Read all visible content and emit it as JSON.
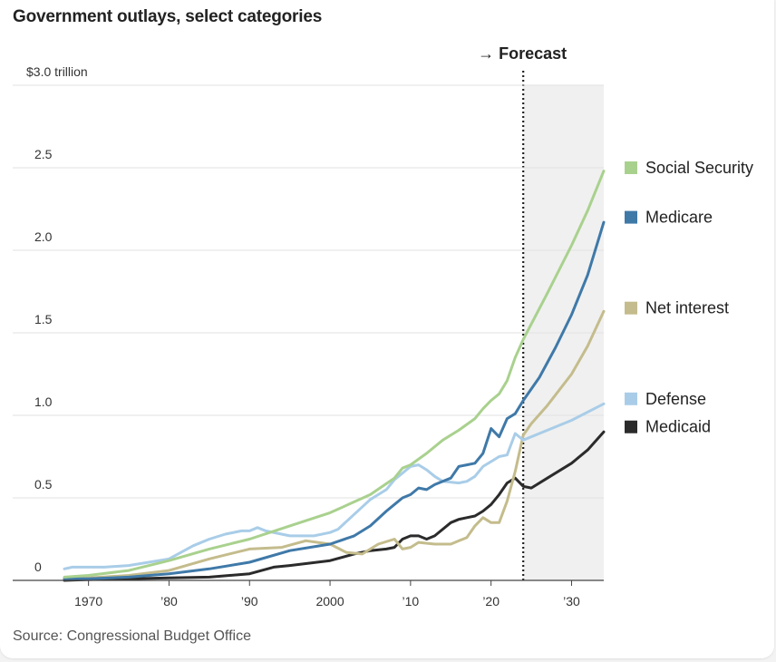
{
  "chart_data": {
    "type": "line",
    "title": "Government outlays, select categories",
    "source": "Source: Congressional Budget Office",
    "forecast_label": "→ Forecast",
    "forecast_start": 2024,
    "xlim": [
      1967,
      2034
    ],
    "ylim": [
      0,
      3.0
    ],
    "y_ticks": [
      {
        "value": 0,
        "label": "0"
      },
      {
        "value": 0.5,
        "label": "0.5"
      },
      {
        "value": 1.0,
        "label": "1.0"
      },
      {
        "value": 1.5,
        "label": "1.5"
      },
      {
        "value": 2.0,
        "label": "2.0"
      },
      {
        "value": 2.5,
        "label": "2.5"
      },
      {
        "value": 3.0,
        "label": "$3.0 trillion"
      }
    ],
    "x_ticks": [
      {
        "value": 1970,
        "label": "1970"
      },
      {
        "value": 1980,
        "label": "’80"
      },
      {
        "value": 1990,
        "label": "’90"
      },
      {
        "value": 2000,
        "label": "2000"
      },
      {
        "value": 2010,
        "label": "’10"
      },
      {
        "value": 2020,
        "label": "’20"
      },
      {
        "value": 2030,
        "label": "’30"
      }
    ],
    "grid": true,
    "legend_position": "right",
    "series": [
      {
        "name": "Social Security",
        "color": "#a9d18e",
        "points": [
          [
            1967,
            0.02
          ],
          [
            1970,
            0.03
          ],
          [
            1975,
            0.06
          ],
          [
            1980,
            0.12
          ],
          [
            1985,
            0.19
          ],
          [
            1990,
            0.25
          ],
          [
            1995,
            0.33
          ],
          [
            2000,
            0.41
          ],
          [
            2005,
            0.52
          ],
          [
            2008,
            0.62
          ],
          [
            2009,
            0.68
          ],
          [
            2010,
            0.7
          ],
          [
            2012,
            0.77
          ],
          [
            2014,
            0.85
          ],
          [
            2016,
            0.91
          ],
          [
            2018,
            0.98
          ],
          [
            2019,
            1.04
          ],
          [
            2020,
            1.09
          ],
          [
            2021,
            1.13
          ],
          [
            2022,
            1.21
          ],
          [
            2023,
            1.35
          ],
          [
            2024,
            1.46
          ],
          [
            2027,
            1.74
          ],
          [
            2030,
            2.03
          ],
          [
            2032,
            2.24
          ],
          [
            2034,
            2.48
          ]
        ]
      },
      {
        "name": "Medicare",
        "color": "#3f79a8",
        "points": [
          [
            1967,
            0.01
          ],
          [
            1970,
            0.01
          ],
          [
            1975,
            0.02
          ],
          [
            1980,
            0.04
          ],
          [
            1985,
            0.07
          ],
          [
            1990,
            0.11
          ],
          [
            1995,
            0.18
          ],
          [
            2000,
            0.22
          ],
          [
            2003,
            0.27
          ],
          [
            2005,
            0.33
          ],
          [
            2007,
            0.42
          ],
          [
            2008,
            0.46
          ],
          [
            2009,
            0.5
          ],
          [
            2010,
            0.52
          ],
          [
            2011,
            0.56
          ],
          [
            2012,
            0.55
          ],
          [
            2013,
            0.58
          ],
          [
            2015,
            0.62
          ],
          [
            2016,
            0.69
          ],
          [
            2017,
            0.7
          ],
          [
            2018,
            0.71
          ],
          [
            2019,
            0.77
          ],
          [
            2020,
            0.92
          ],
          [
            2021,
            0.87
          ],
          [
            2022,
            0.98
          ],
          [
            2023,
            1.01
          ],
          [
            2024,
            1.09
          ],
          [
            2026,
            1.23
          ],
          [
            2028,
            1.41
          ],
          [
            2030,
            1.61
          ],
          [
            2032,
            1.85
          ],
          [
            2034,
            2.17
          ]
        ]
      },
      {
        "name": "Net interest",
        "color": "#c4bc8c",
        "points": [
          [
            1967,
            0.01
          ],
          [
            1970,
            0.015
          ],
          [
            1975,
            0.03
          ],
          [
            1980,
            0.06
          ],
          [
            1985,
            0.13
          ],
          [
            1990,
            0.19
          ],
          [
            1994,
            0.2
          ],
          [
            1997,
            0.24
          ],
          [
            2000,
            0.22
          ],
          [
            2002,
            0.17
          ],
          [
            2004,
            0.16
          ],
          [
            2006,
            0.22
          ],
          [
            2008,
            0.25
          ],
          [
            2009,
            0.19
          ],
          [
            2010,
            0.2
          ],
          [
            2011,
            0.23
          ],
          [
            2013,
            0.22
          ],
          [
            2015,
            0.22
          ],
          [
            2017,
            0.26
          ],
          [
            2018,
            0.33
          ],
          [
            2019,
            0.38
          ],
          [
            2020,
            0.35
          ],
          [
            2021,
            0.35
          ],
          [
            2022,
            0.48
          ],
          [
            2023,
            0.66
          ],
          [
            2024,
            0.88
          ],
          [
            2025,
            0.95
          ],
          [
            2027,
            1.06
          ],
          [
            2030,
            1.25
          ],
          [
            2032,
            1.42
          ],
          [
            2034,
            1.63
          ]
        ]
      },
      {
        "name": "Defense",
        "color": "#a9cde8",
        "points": [
          [
            1967,
            0.07
          ],
          [
            1968,
            0.08
          ],
          [
            1972,
            0.08
          ],
          [
            1975,
            0.09
          ],
          [
            1980,
            0.13
          ],
          [
            1983,
            0.21
          ],
          [
            1985,
            0.25
          ],
          [
            1987,
            0.28
          ],
          [
            1989,
            0.3
          ],
          [
            1990,
            0.3
          ],
          [
            1991,
            0.32
          ],
          [
            1992,
            0.3
          ],
          [
            1995,
            0.27
          ],
          [
            1998,
            0.27
          ],
          [
            2000,
            0.29
          ],
          [
            2001,
            0.31
          ],
          [
            2003,
            0.4
          ],
          [
            2005,
            0.49
          ],
          [
            2007,
            0.55
          ],
          [
            2008,
            0.61
          ],
          [
            2009,
            0.65
          ],
          [
            2010,
            0.69
          ],
          [
            2011,
            0.7
          ],
          [
            2012,
            0.67
          ],
          [
            2013,
            0.63
          ],
          [
            2014,
            0.6
          ],
          [
            2016,
            0.59
          ],
          [
            2017,
            0.6
          ],
          [
            2018,
            0.63
          ],
          [
            2019,
            0.69
          ],
          [
            2020,
            0.72
          ],
          [
            2021,
            0.75
          ],
          [
            2022,
            0.76
          ],
          [
            2023,
            0.89
          ],
          [
            2024,
            0.85
          ],
          [
            2026,
            0.89
          ],
          [
            2030,
            0.97
          ],
          [
            2034,
            1.07
          ]
        ]
      },
      {
        "name": "Medicaid",
        "color": "#2b2b2b",
        "points": [
          [
            1967,
            0.0
          ],
          [
            1970,
            0.005
          ],
          [
            1975,
            0.01
          ],
          [
            1980,
            0.015
          ],
          [
            1985,
            0.02
          ],
          [
            1990,
            0.04
          ],
          [
            1993,
            0.08
          ],
          [
            1995,
            0.09
          ],
          [
            2000,
            0.12
          ],
          [
            2003,
            0.16
          ],
          [
            2005,
            0.18
          ],
          [
            2007,
            0.19
          ],
          [
            2008,
            0.2
          ],
          [
            2009,
            0.25
          ],
          [
            2010,
            0.27
          ],
          [
            2011,
            0.27
          ],
          [
            2012,
            0.25
          ],
          [
            2013,
            0.27
          ],
          [
            2015,
            0.35
          ],
          [
            2016,
            0.37
          ],
          [
            2017,
            0.38
          ],
          [
            2018,
            0.39
          ],
          [
            2019,
            0.42
          ],
          [
            2020,
            0.46
          ],
          [
            2021,
            0.52
          ],
          [
            2022,
            0.59
          ],
          [
            2023,
            0.62
          ],
          [
            2024,
            0.57
          ],
          [
            2025,
            0.56
          ],
          [
            2027,
            0.62
          ],
          [
            2030,
            0.71
          ],
          [
            2032,
            0.79
          ],
          [
            2034,
            0.9
          ]
        ]
      }
    ],
    "legend": [
      {
        "name": "Social Security",
        "color": "#a9d18e",
        "value": 2.5
      },
      {
        "name": "Medicare",
        "color": "#3f79a8",
        "value": 2.2
      },
      {
        "name": "Net interest",
        "color": "#c4bc8c",
        "value": 1.65
      },
      {
        "name": "Defense",
        "color": "#a9cde8",
        "value": 1.1
      },
      {
        "name": "Medicaid",
        "color": "#2b2b2b",
        "value": 0.93
      }
    ]
  }
}
